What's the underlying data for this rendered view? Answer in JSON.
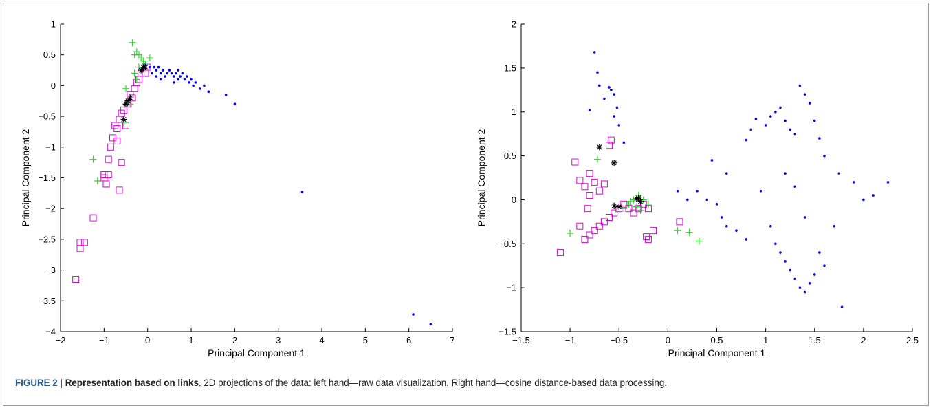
{
  "caption": {
    "figure_label": "FIGURE 2",
    "separator": " | ",
    "bold_title": "Representation based on links",
    "text": ". 2D projections of the data: left hand—raw data visualization. Right hand—cosine distance-based data processing."
  },
  "colors": {
    "dots": "#0000ff",
    "squares": "#e000e0",
    "plus": "#22dd22",
    "star": "#000000"
  },
  "chart_data": [
    {
      "type": "scatter",
      "xlabel": "Principal Component 1",
      "ylabel": "Principal Component 2",
      "xlim": [
        -2,
        7
      ],
      "ylim": [
        -4,
        1
      ],
      "xticks": [
        -2,
        -1,
        0,
        1,
        2,
        3,
        4,
        5,
        6,
        7
      ],
      "yticks": [
        -4,
        -3.5,
        -3,
        -2.5,
        -2,
        -1.5,
        -1,
        -0.5,
        0,
        0.5,
        1
      ],
      "grid": false,
      "series": [
        {
          "marker": "dot",
          "color": "#0000ff",
          "points": [
            [
              0.05,
              0.3
            ],
            [
              0.15,
              0.3
            ],
            [
              0.2,
              0.25
            ],
            [
              0.25,
              0.3
            ],
            [
              0.3,
              0.2
            ],
            [
              0.35,
              0.25
            ],
            [
              0.4,
              0.15
            ],
            [
              0.45,
              0.2
            ],
            [
              0.5,
              0.25
            ],
            [
              0.55,
              0.2
            ],
            [
              0.6,
              0.15
            ],
            [
              0.65,
              0.2
            ],
            [
              0.7,
              0.1
            ],
            [
              0.75,
              0.15
            ],
            [
              0.8,
              0.2
            ],
            [
              0.85,
              0.1
            ],
            [
              0.9,
              0.15
            ],
            [
              0.95,
              0.05
            ],
            [
              1.0,
              0.1
            ],
            [
              1.05,
              0.0
            ],
            [
              1.1,
              0.05
            ],
            [
              1.2,
              -0.05
            ],
            [
              1.3,
              0.0
            ],
            [
              1.4,
              -0.1
            ],
            [
              1.8,
              -0.15
            ],
            [
              2.0,
              -0.3
            ],
            [
              3.55,
              -1.73
            ],
            [
              6.1,
              -3.72
            ],
            [
              6.5,
              -3.88
            ],
            [
              0.1,
              0.2
            ],
            [
              0.2,
              0.15
            ],
            [
              0.3,
              0.1
            ],
            [
              0.6,
              0.05
            ],
            [
              0.7,
              0.25
            ],
            [
              -0.05,
              0.35
            ],
            [
              -0.1,
              0.25
            ]
          ]
        },
        {
          "marker": "square",
          "color": "#e000e0",
          "points": [
            [
              -1.65,
              -3.15
            ],
            [
              -1.55,
              -2.55
            ],
            [
              -1.55,
              -2.65
            ],
            [
              -1.45,
              -2.55
            ],
            [
              -1.25,
              -2.15
            ],
            [
              -1.0,
              -1.45
            ],
            [
              -1.0,
              -1.5
            ],
            [
              -0.95,
              -1.6
            ],
            [
              -0.95,
              -1.6
            ],
            [
              -0.9,
              -1.45
            ],
            [
              -0.9,
              -1.2
            ],
            [
              -0.85,
              -1.0
            ],
            [
              -0.8,
              -0.85
            ],
            [
              -0.75,
              -0.65
            ],
            [
              -0.7,
              -0.9
            ],
            [
              -0.65,
              -1.7
            ],
            [
              -0.6,
              -1.25
            ],
            [
              -0.6,
              -0.45
            ],
            [
              -0.55,
              -0.4
            ],
            [
              -0.5,
              -0.65
            ],
            [
              -0.45,
              -0.3
            ],
            [
              -0.4,
              -0.15
            ],
            [
              -0.35,
              -0.2
            ],
            [
              -0.3,
              -0.05
            ],
            [
              -0.25,
              0.05
            ],
            [
              -0.2,
              0.1
            ],
            [
              -0.15,
              0.2
            ],
            [
              -0.05,
              0.2
            ],
            [
              0.0,
              0.3
            ],
            [
              -0.7,
              -0.7
            ],
            [
              -0.65,
              -0.55
            ]
          ]
        },
        {
          "marker": "plus",
          "color": "#22dd22",
          "points": [
            [
              -1.25,
              -1.2
            ],
            [
              -1.15,
              -1.55
            ],
            [
              -0.55,
              -0.6
            ],
            [
              -0.4,
              -0.3
            ],
            [
              -0.35,
              0.7
            ],
            [
              -0.3,
              0.5
            ],
            [
              -0.25,
              0.55
            ],
            [
              -0.2,
              0.5
            ],
            [
              -0.15,
              0.45
            ],
            [
              -0.1,
              0.4
            ],
            [
              -0.05,
              0.35
            ],
            [
              0.05,
              0.45
            ],
            [
              -0.3,
              0.2
            ],
            [
              -0.25,
              0.1
            ],
            [
              -0.2,
              0.3
            ],
            [
              -0.5,
              -0.05
            ]
          ]
        },
        {
          "marker": "star",
          "color": "#000000",
          "points": [
            [
              -0.55,
              -0.55
            ],
            [
              -0.5,
              -0.3
            ],
            [
              -0.45,
              -0.25
            ],
            [
              -0.4,
              -0.2
            ],
            [
              -0.1,
              0.3
            ],
            [
              -0.05,
              0.3
            ],
            [
              -0.15,
              0.25
            ]
          ]
        }
      ]
    },
    {
      "type": "scatter",
      "xlabel": "Principal Component 1",
      "ylabel": "Principal Component 2",
      "xlim": [
        -1.5,
        2.5
      ],
      "ylim": [
        -1.5,
        2
      ],
      "xticks": [
        -1.5,
        -1,
        -0.5,
        0,
        0.5,
        1,
        1.5,
        2,
        2.5
      ],
      "yticks": [
        -1.5,
        -1,
        -0.5,
        0,
        0.5,
        1,
        1.5,
        2
      ],
      "grid": false,
      "series": [
        {
          "marker": "dot",
          "color": "#0000ff",
          "points": [
            [
              -0.75,
              1.68
            ],
            [
              -0.72,
              1.45
            ],
            [
              -0.7,
              1.3
            ],
            [
              -0.8,
              1.02
            ],
            [
              -0.65,
              1.15
            ],
            [
              -0.6,
              1.28
            ],
            [
              -0.58,
              1.25
            ],
            [
              -0.55,
              1.2
            ],
            [
              -0.52,
              1.05
            ],
            [
              -0.55,
              0.95
            ],
            [
              -0.5,
              0.85
            ],
            [
              -0.45,
              0.65
            ],
            [
              0.1,
              0.1
            ],
            [
              0.2,
              0.0
            ],
            [
              0.3,
              0.1
            ],
            [
              0.4,
              0.0
            ],
            [
              0.5,
              -0.05
            ],
            [
              0.55,
              -0.2
            ],
            [
              0.6,
              -0.3
            ],
            [
              0.7,
              -0.35
            ],
            [
              0.8,
              -0.45
            ],
            [
              0.8,
              0.68
            ],
            [
              0.85,
              0.8
            ],
            [
              0.9,
              0.92
            ],
            [
              1.0,
              0.85
            ],
            [
              1.05,
              0.95
            ],
            [
              1.1,
              1.0
            ],
            [
              1.15,
              1.05
            ],
            [
              1.2,
              0.9
            ],
            [
              1.25,
              0.8
            ],
            [
              1.3,
              0.75
            ],
            [
              1.35,
              1.3
            ],
            [
              1.4,
              1.2
            ],
            [
              1.45,
              1.1
            ],
            [
              1.5,
              0.9
            ],
            [
              1.55,
              0.7
            ],
            [
              1.1,
              -0.5
            ],
            [
              1.2,
              -0.7
            ],
            [
              1.25,
              -0.8
            ],
            [
              1.3,
              -0.9
            ],
            [
              1.35,
              -1.0
            ],
            [
              1.4,
              -1.05
            ],
            [
              1.45,
              -0.95
            ],
            [
              1.5,
              -0.85
            ],
            [
              1.55,
              -0.6
            ],
            [
              1.6,
              -0.75
            ],
            [
              1.78,
              -1.22
            ],
            [
              1.75,
              0.3
            ],
            [
              1.9,
              0.2
            ],
            [
              2.0,
              0.0
            ],
            [
              2.1,
              0.05
            ],
            [
              2.25,
              0.2
            ],
            [
              1.2,
              0.3
            ],
            [
              1.3,
              0.15
            ],
            [
              1.4,
              -0.2
            ],
            [
              0.45,
              0.45
            ],
            [
              0.6,
              0.3
            ],
            [
              0.95,
              0.1
            ],
            [
              1.05,
              -0.3
            ],
            [
              1.15,
              -0.6
            ],
            [
              1.6,
              0.5
            ],
            [
              1.7,
              -0.3
            ]
          ]
        },
        {
          "marker": "square",
          "color": "#e000e0",
          "points": [
            [
              -1.1,
              -0.6
            ],
            [
              -0.95,
              0.43
            ],
            [
              -0.9,
              0.22
            ],
            [
              -0.85,
              0.15
            ],
            [
              -0.8,
              0.3
            ],
            [
              -0.8,
              0.05
            ],
            [
              -0.75,
              0.2
            ],
            [
              -0.7,
              0.1
            ],
            [
              -0.65,
              0.18
            ],
            [
              -0.6,
              0.62
            ],
            [
              -0.58,
              0.68
            ],
            [
              -0.9,
              -0.3
            ],
            [
              -0.85,
              -0.45
            ],
            [
              -0.8,
              -0.4
            ],
            [
              -0.75,
              -0.35
            ],
            [
              -0.7,
              -0.3
            ],
            [
              -0.65,
              -0.25
            ],
            [
              -0.6,
              -0.2
            ],
            [
              -0.55,
              -0.15
            ],
            [
              -0.5,
              -0.1
            ],
            [
              -0.45,
              -0.05
            ],
            [
              -0.4,
              -0.1
            ],
            [
              -0.35,
              -0.15
            ],
            [
              -0.3,
              -0.1
            ],
            [
              -0.25,
              -0.05
            ],
            [
              -0.2,
              -0.1
            ],
            [
              -0.15,
              -0.35
            ],
            [
              -0.2,
              -0.45
            ],
            [
              -0.22,
              -0.42
            ],
            [
              0.12,
              -0.25
            ],
            [
              -0.82,
              -0.1
            ]
          ]
        },
        {
          "marker": "plus",
          "color": "#22dd22",
          "points": [
            [
              -1.0,
              -0.38
            ],
            [
              -0.72,
              0.46
            ],
            [
              -0.45,
              -0.1
            ],
            [
              -0.4,
              -0.05
            ],
            [
              -0.35,
              0.0
            ],
            [
              -0.3,
              0.05
            ],
            [
              -0.25,
              0.0
            ],
            [
              -0.2,
              -0.05
            ],
            [
              0.1,
              -0.35
            ],
            [
              0.22,
              -0.37
            ],
            [
              0.32,
              -0.47
            ],
            [
              -0.38,
              -0.02
            ],
            [
              -0.32,
              -0.08
            ],
            [
              -0.28,
              -0.12
            ]
          ]
        },
        {
          "marker": "star",
          "color": "#000000",
          "points": [
            [
              -0.7,
              0.6
            ],
            [
              -0.55,
              0.42
            ],
            [
              -0.55,
              -0.07
            ],
            [
              -0.5,
              -0.08
            ],
            [
              -0.3,
              0.02
            ],
            [
              -0.28,
              -0.02
            ],
            [
              -0.32,
              0.01
            ]
          ]
        }
      ]
    }
  ]
}
